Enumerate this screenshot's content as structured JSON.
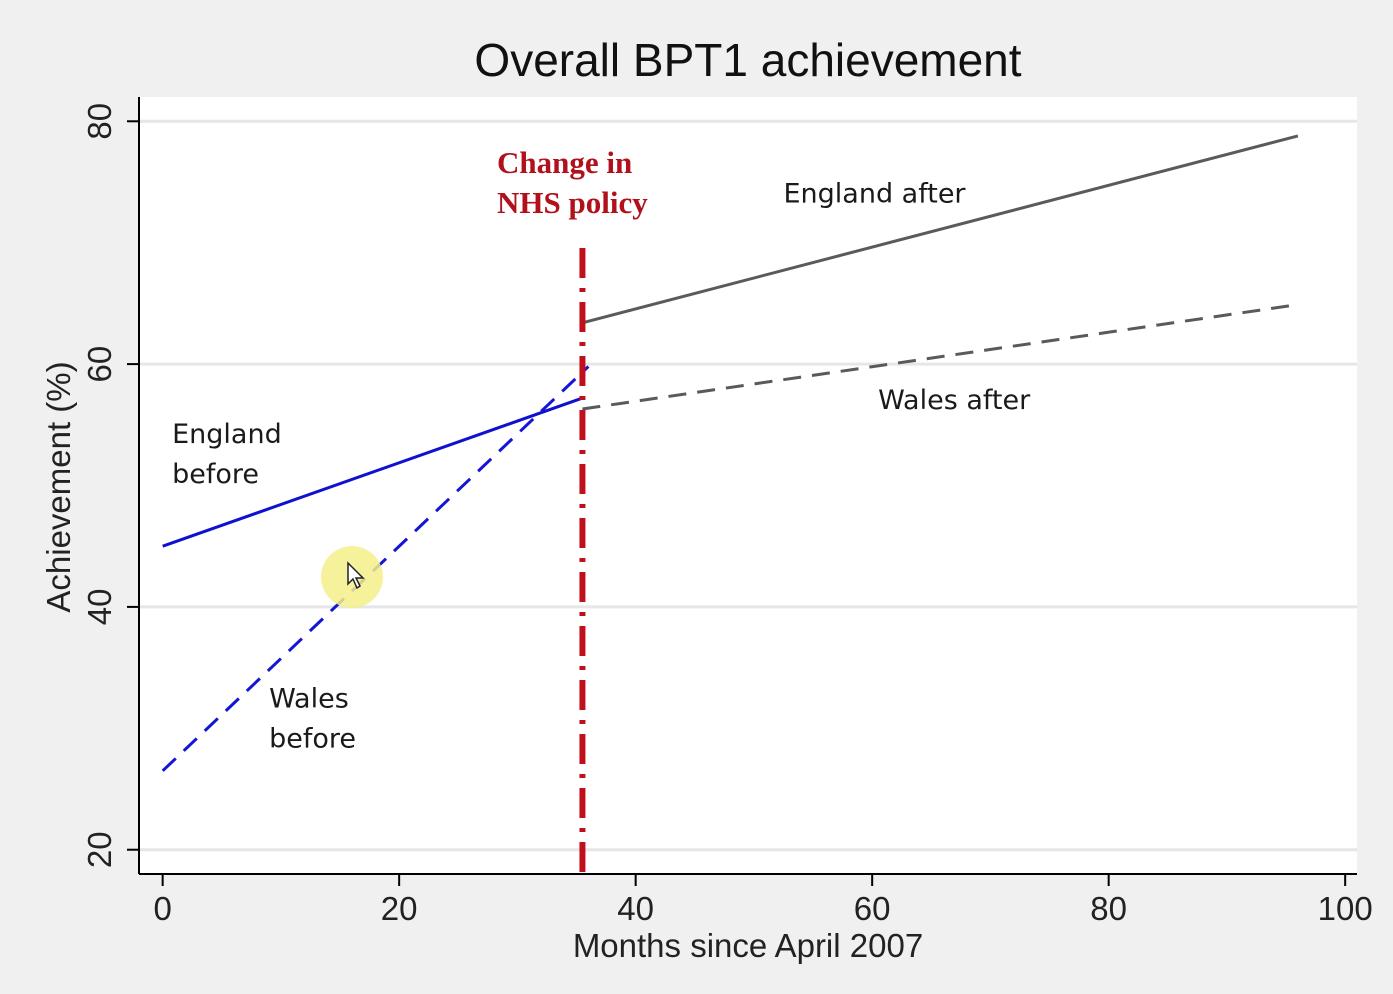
{
  "chart_data": {
    "type": "line",
    "title": "Overall BPT1 achievement",
    "xlabel": "Months since April 2007",
    "ylabel": "Achievement (%)",
    "xlim": [
      -2,
      101
    ],
    "ylim": [
      18,
      82
    ],
    "xticks": [
      0,
      20,
      40,
      60,
      80,
      100
    ],
    "yticks": [
      20,
      40,
      60,
      80
    ],
    "grid": "horizontal",
    "series": [
      {
        "key": "england-before",
        "x": [
          0,
          35.5
        ],
        "y": [
          45,
          57.2
        ],
        "color": "#1010d0",
        "dash": "solid"
      },
      {
        "key": "wales-before",
        "x": [
          0,
          36
        ],
        "y": [
          26.5,
          59.8
        ],
        "color": "#1515d5",
        "dash": "dashed"
      },
      {
        "key": "england-after",
        "x": [
          35.5,
          96
        ],
        "y": [
          63.4,
          78.8
        ],
        "color": "#5a5a5a",
        "dash": "solid"
      },
      {
        "key": "wales-after",
        "x": [
          35.5,
          96
        ],
        "y": [
          56.3,
          64.9
        ],
        "color": "#5a5a5a",
        "dash": "dashed"
      }
    ],
    "intervention": {
      "x": 35.5,
      "color": "#c0101c",
      "label_lines": [
        "Change in",
        "NHS policy"
      ]
    },
    "annotations": [
      {
        "lines": [
          "England",
          "before"
        ],
        "x": 0.8,
        "y": 53.5
      },
      {
        "lines": [
          "Wales",
          "before"
        ],
        "x": 9,
        "y": 31.7
      },
      {
        "lines": [
          "England after"
        ],
        "x": 52.5,
        "y": 73.3
      },
      {
        "lines": [
          "Wales after"
        ],
        "x": 60.5,
        "y": 56.3
      }
    ]
  }
}
